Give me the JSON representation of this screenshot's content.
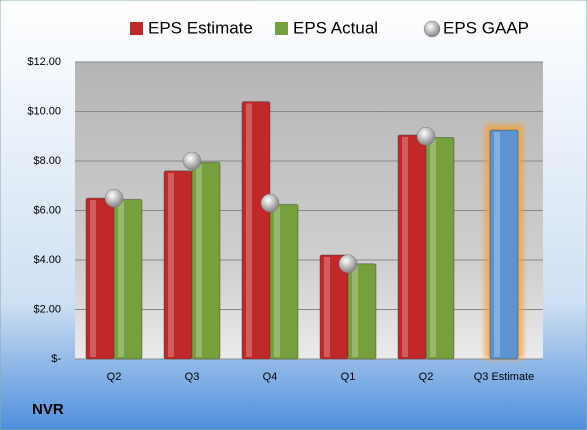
{
  "chart_data": {
    "type": "bar",
    "title": "NVR",
    "categories": [
      "Q2",
      "Q3",
      "Q4",
      "Q1",
      "Q2",
      "Q3 Estimate"
    ],
    "series": [
      {
        "name": "EPS Estimate",
        "color": "#c0282a",
        "values": [
          6.5,
          7.6,
          10.4,
          4.2,
          9.05,
          9.25
        ],
        "colors": [
          "#c0282a",
          "#c0282a",
          "#c0282a",
          "#c0282a",
          "#c0282a",
          "#5b93d3"
        ]
      },
      {
        "name": "EPS Actual",
        "color": "#76a03c",
        "values": [
          6.45,
          7.95,
          6.25,
          3.85,
          8.95,
          null
        ]
      },
      {
        "name": "EPS GAAP",
        "color": "#b0b0b0",
        "marker": "circle",
        "values": [
          6.5,
          8.0,
          6.3,
          3.85,
          9.0,
          null
        ]
      }
    ],
    "ylim": [
      0,
      12
    ],
    "yticks": [
      {
        "value": 0,
        "label": "$-"
      },
      {
        "value": 2,
        "label": "$2.00"
      },
      {
        "value": 4,
        "label": "$4.00"
      },
      {
        "value": 6,
        "label": "$6.00"
      },
      {
        "value": 8,
        "label": "$8.00"
      },
      {
        "value": 10,
        "label": "$10.00"
      },
      {
        "value": 12,
        "label": "$12.00"
      }
    ],
    "grid": true
  }
}
